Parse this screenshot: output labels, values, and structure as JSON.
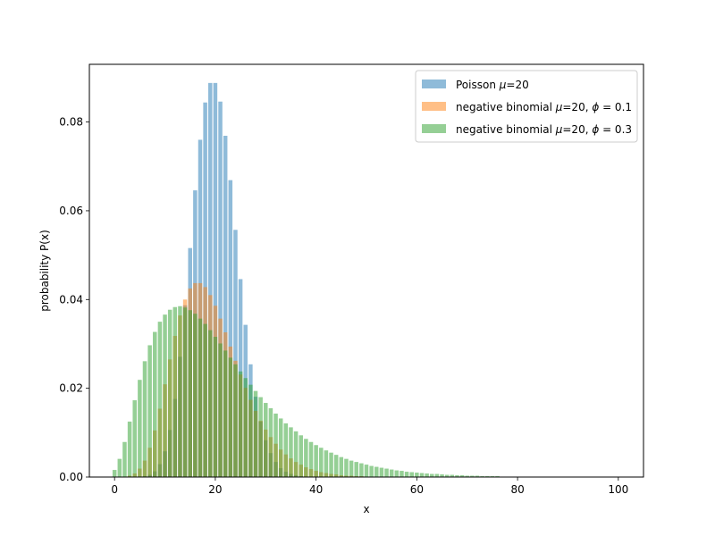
{
  "chart_data": {
    "type": "bar",
    "xlabel": "x",
    "ylabel": "probability P(x)",
    "xlim": [
      -5,
      105
    ],
    "ylim": [
      0,
      0.093
    ],
    "x_ticks": [
      0,
      20,
      40,
      60,
      80,
      100
    ],
    "x_tick_labels": [
      "0",
      "20",
      "40",
      "60",
      "80",
      "100"
    ],
    "y_ticks": [
      0.0,
      0.02,
      0.04,
      0.06,
      0.08
    ],
    "y_tick_labels": [
      "0.00",
      "0.02",
      "0.04",
      "0.06",
      "0.08"
    ],
    "grid": false,
    "legend_position": "top-right",
    "bar_width": 0.8,
    "bar_alpha": 0.5,
    "series": [
      {
        "legend_prefix": "Poisson ",
        "mu_symbol": "μ",
        "mu_text": "=20",
        "phi_symbol": "",
        "phi_text": "",
        "color": "#1f77b4",
        "x": [
          0,
          1,
          2,
          3,
          4,
          5,
          6,
          7,
          8,
          9,
          10,
          11,
          12,
          13,
          14,
          15,
          16,
          17,
          18,
          19,
          20,
          21,
          22,
          23,
          24,
          25,
          26,
          27,
          28,
          29,
          30,
          31,
          32,
          33,
          34,
          35,
          36,
          37,
          38,
          39,
          40,
          41,
          42,
          43,
          44,
          45
        ],
        "values": [
          0.0,
          0.0,
          0.0,
          0.0,
          0.0,
          0.0001,
          0.0002,
          0.0005,
          0.0013,
          0.0029,
          0.0058,
          0.0106,
          0.0176,
          0.0271,
          0.0387,
          0.0516,
          0.0646,
          0.076,
          0.0844,
          0.0888,
          0.0888,
          0.0846,
          0.0769,
          0.0669,
          0.0557,
          0.0446,
          0.0343,
          0.0254,
          0.0181,
          0.0125,
          0.0083,
          0.0054,
          0.0034,
          0.002,
          0.0012,
          0.0007,
          0.0004,
          0.0002,
          0.0001,
          0.0001,
          0.0,
          0.0,
          0.0,
          0.0,
          0.0,
          0.0
        ]
      },
      {
        "legend_prefix": "negative binomial ",
        "mu_symbol": "μ",
        "mu_text": "=20, ",
        "phi_symbol": "ϕ",
        "phi_text": " = 0.1",
        "color": "#ff7f0e",
        "x": [
          0,
          1,
          2,
          3,
          4,
          5,
          6,
          7,
          8,
          9,
          10,
          11,
          12,
          13,
          14,
          15,
          16,
          17,
          18,
          19,
          20,
          21,
          22,
          23,
          24,
          25,
          26,
          27,
          28,
          29,
          30,
          31,
          32,
          33,
          34,
          35,
          36,
          37,
          38,
          39,
          40,
          41,
          42,
          43,
          44,
          45,
          46,
          47,
          48,
          49,
          50,
          51,
          52,
          53,
          54,
          55,
          56,
          57,
          58,
          59,
          60
        ],
        "values": [
          0.0,
          0.0,
          0.0001,
          0.0003,
          0.0008,
          0.0019,
          0.0037,
          0.0066,
          0.0105,
          0.0154,
          0.0209,
          0.0265,
          0.0318,
          0.0364,
          0.04,
          0.0425,
          0.0437,
          0.0437,
          0.0428,
          0.041,
          0.0386,
          0.0357,
          0.0326,
          0.0294,
          0.0262,
          0.0231,
          0.0201,
          0.0174,
          0.0149,
          0.0127,
          0.0107,
          0.009,
          0.0075,
          0.0062,
          0.0051,
          0.0042,
          0.0034,
          0.0028,
          0.0022,
          0.0018,
          0.0014,
          0.0011,
          0.0009,
          0.0007,
          0.0006,
          0.0004,
          0.0003,
          0.0003,
          0.0002,
          0.0002,
          0.0001,
          0.0001,
          0.0001,
          0.0001,
          0.0,
          0.0,
          0.0,
          0.0,
          0.0,
          0.0,
          0.0
        ]
      },
      {
        "legend_prefix": "negative binomial ",
        "mu_symbol": "μ",
        "mu_text": "=20, ",
        "phi_symbol": "ϕ",
        "phi_text": " = 0.3",
        "color": "#2ca02c",
        "x": [
          0,
          1,
          2,
          3,
          4,
          5,
          6,
          7,
          8,
          9,
          10,
          11,
          12,
          13,
          14,
          15,
          16,
          17,
          18,
          19,
          20,
          21,
          22,
          23,
          24,
          25,
          26,
          27,
          28,
          29,
          30,
          31,
          32,
          33,
          34,
          35,
          36,
          37,
          38,
          39,
          40,
          41,
          42,
          43,
          44,
          45,
          46,
          47,
          48,
          49,
          50,
          51,
          52,
          53,
          54,
          55,
          56,
          57,
          58,
          59,
          60,
          61,
          62,
          63,
          64,
          65,
          66,
          67,
          68,
          69,
          70,
          71,
          72,
          73,
          74,
          75,
          76,
          77,
          78,
          79,
          80
        ],
        "values": [
          0.0016,
          0.0041,
          0.0079,
          0.0125,
          0.0173,
          0.0219,
          0.0261,
          0.0297,
          0.0327,
          0.035,
          0.0366,
          0.0377,
          0.0383,
          0.0385,
          0.0382,
          0.0376,
          0.0368,
          0.0357,
          0.0345,
          0.0331,
          0.0316,
          0.0301,
          0.0285,
          0.0269,
          0.0254,
          0.0238,
          0.0223,
          0.0208,
          0.0194,
          0.018,
          0.0167,
          0.0155,
          0.0143,
          0.0132,
          0.0121,
          0.0112,
          0.0103,
          0.0094,
          0.0086,
          0.0079,
          0.0072,
          0.0066,
          0.006,
          0.0055,
          0.005,
          0.0045,
          0.0041,
          0.0037,
          0.0034,
          0.0031,
          0.0028,
          0.0025,
          0.0023,
          0.0021,
          0.0019,
          0.0017,
          0.0015,
          0.0014,
          0.0012,
          0.0011,
          0.001,
          0.0009,
          0.0008,
          0.0007,
          0.0007,
          0.0006,
          0.0005,
          0.0005,
          0.0004,
          0.0004,
          0.0003,
          0.0003,
          0.0003,
          0.0002,
          0.0002,
          0.0002,
          0.0002,
          0.0001,
          0.0001,
          0.0001,
          0.0001
        ]
      }
    ]
  }
}
